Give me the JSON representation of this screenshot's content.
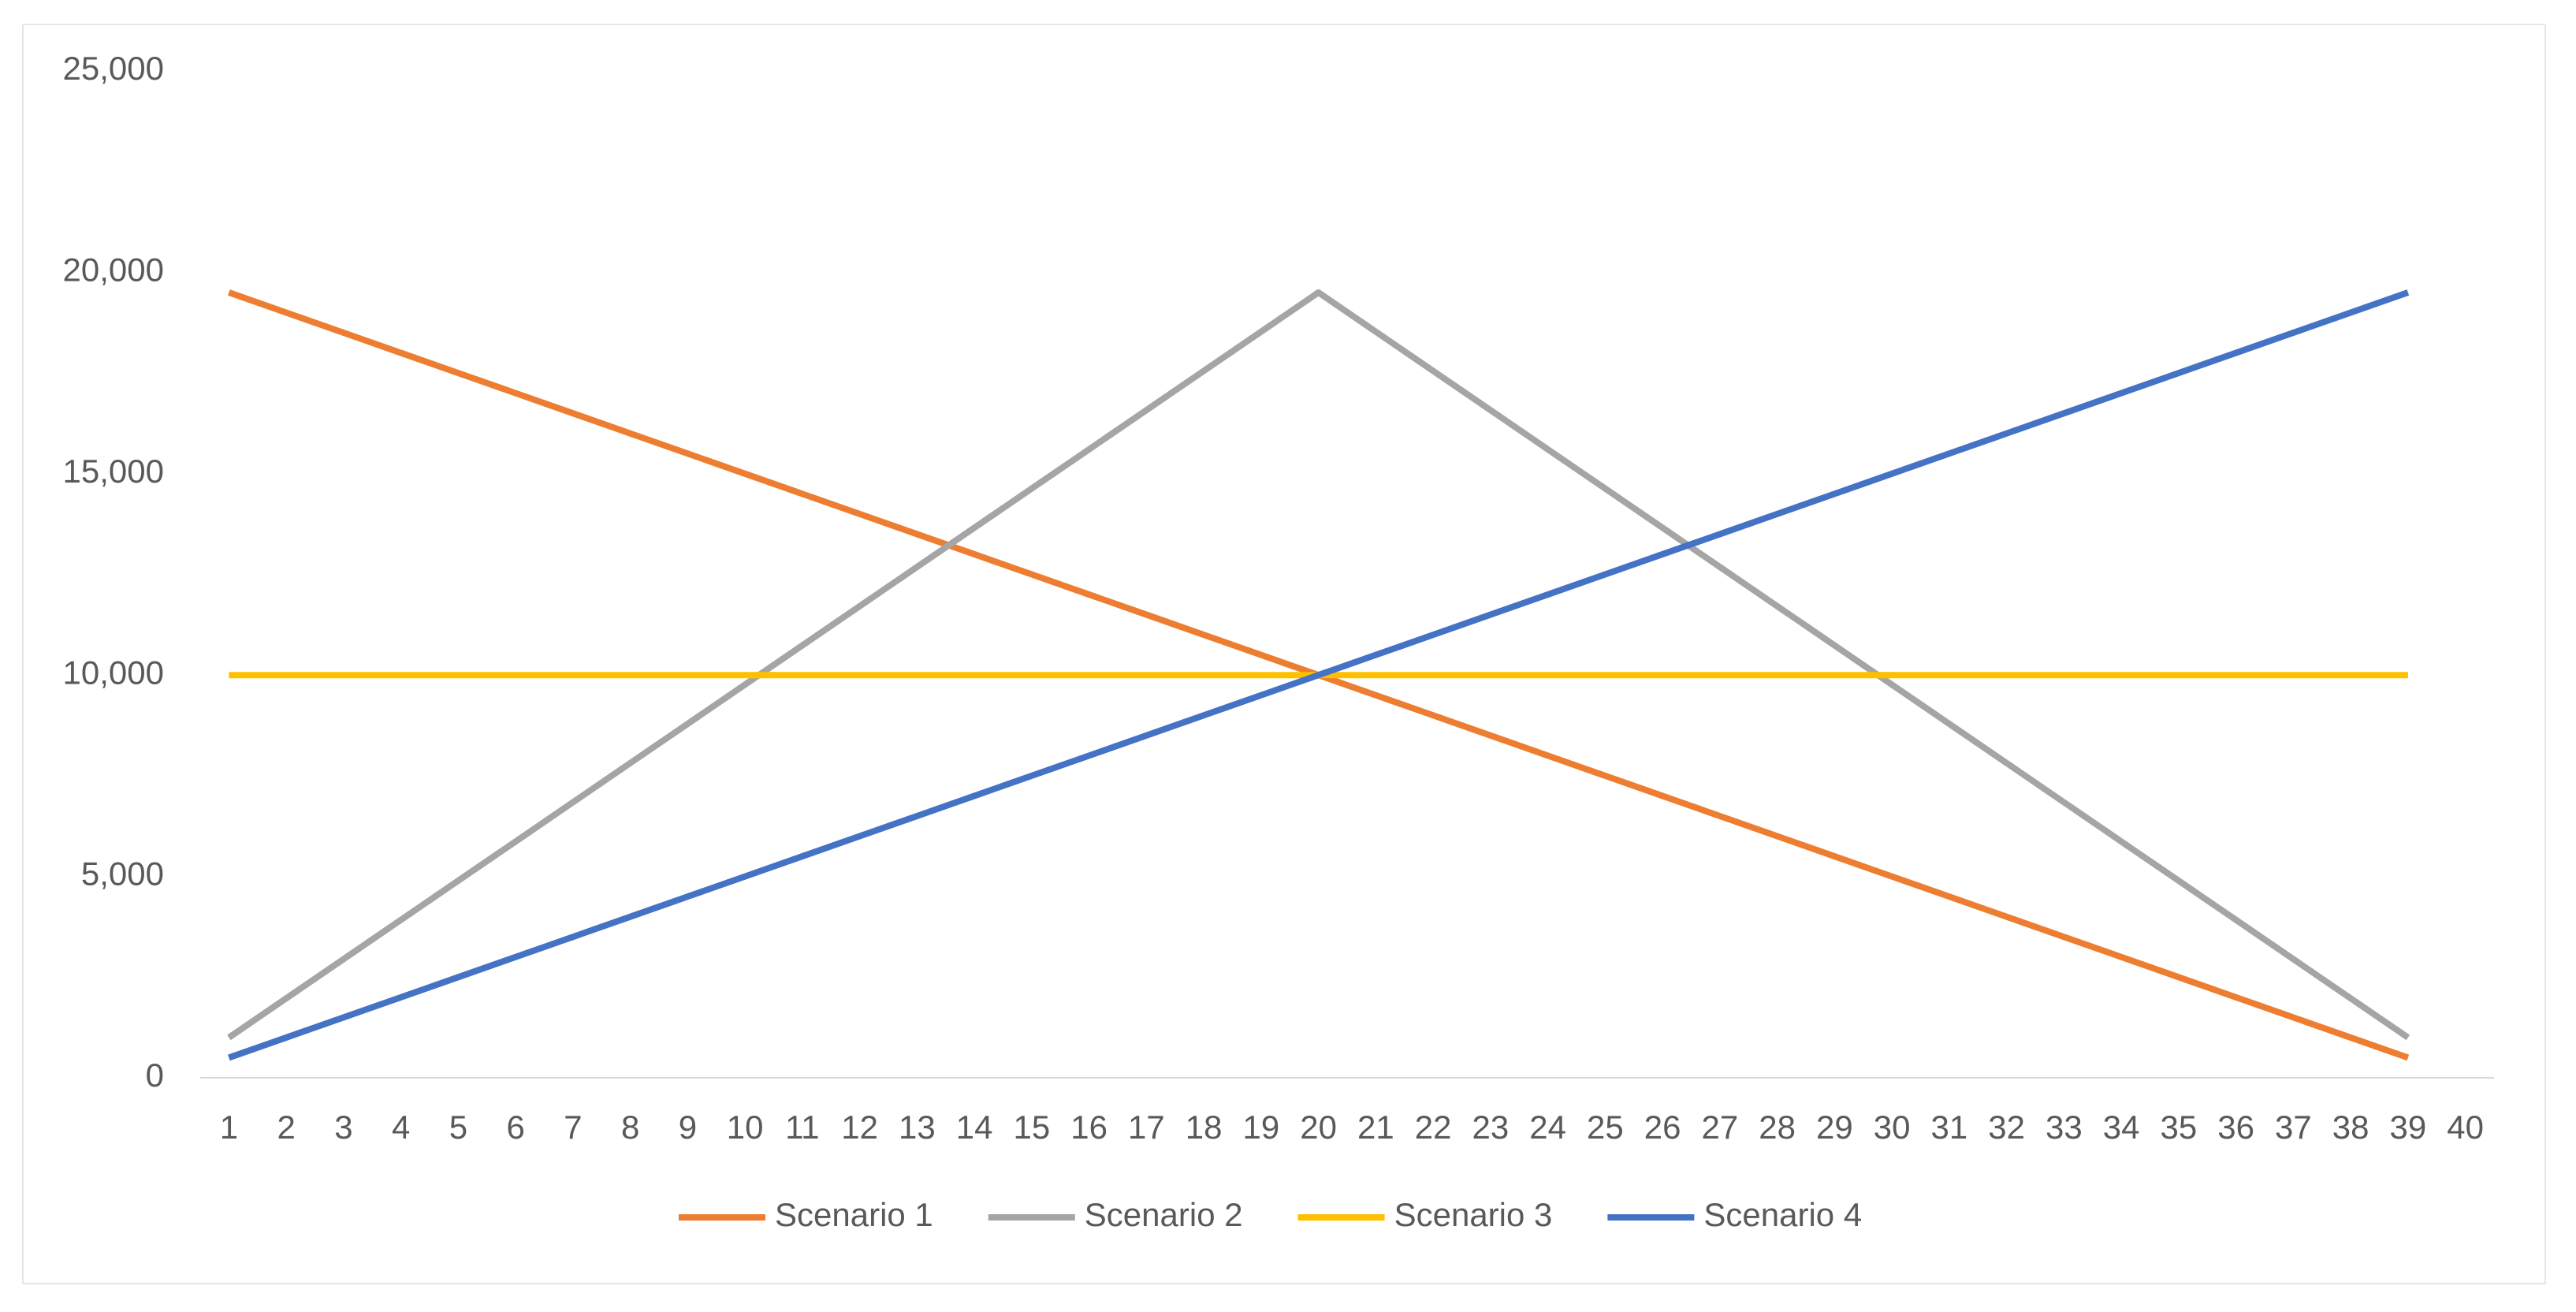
{
  "chart_data": {
    "type": "line",
    "categories": [
      1,
      2,
      3,
      4,
      5,
      6,
      7,
      8,
      9,
      10,
      11,
      12,
      13,
      14,
      15,
      16,
      17,
      18,
      19,
      20,
      21,
      22,
      23,
      24,
      25,
      26,
      27,
      28,
      29,
      30,
      31,
      32,
      33,
      34,
      35,
      36,
      37,
      38,
      39,
      40
    ],
    "series": [
      {
        "name": "Scenario 1",
        "color": "#ED7D31",
        "values": [
          19500,
          19000,
          18500,
          18000,
          17500,
          17000,
          16500,
          16000,
          15500,
          15000,
          14500,
          14000,
          13500,
          13000,
          12500,
          12000,
          11500,
          11000,
          10500,
          10000,
          9500,
          9000,
          8500,
          8000,
          7500,
          7000,
          6500,
          6000,
          5500,
          5000,
          4500,
          4000,
          3500,
          3000,
          2500,
          2000,
          1500,
          1000,
          500,
          null
        ]
      },
      {
        "name": "Scenario 2",
        "color": "#A5A5A5",
        "values": [
          1000,
          1974,
          2947,
          3921,
          4895,
          5868,
          6842,
          7816,
          8789,
          9763,
          10737,
          11711,
          12684,
          13658,
          14632,
          15605,
          16579,
          17553,
          18526,
          19500,
          18526,
          17553,
          16579,
          15605,
          14632,
          13658,
          12684,
          11711,
          10737,
          9763,
          8789,
          7816,
          6842,
          5868,
          4895,
          3921,
          2947,
          1974,
          1000,
          null
        ]
      },
      {
        "name": "Scenario 3",
        "color": "#FFC000",
        "values": [
          10000,
          10000,
          10000,
          10000,
          10000,
          10000,
          10000,
          10000,
          10000,
          10000,
          10000,
          10000,
          10000,
          10000,
          10000,
          10000,
          10000,
          10000,
          10000,
          10000,
          10000,
          10000,
          10000,
          10000,
          10000,
          10000,
          10000,
          10000,
          10000,
          10000,
          10000,
          10000,
          10000,
          10000,
          10000,
          10000,
          10000,
          10000,
          10000,
          null
        ]
      },
      {
        "name": "Scenario 4",
        "color": "#4472C4",
        "values": [
          500,
          1000,
          1500,
          2000,
          2500,
          3000,
          3500,
          4000,
          4500,
          5000,
          5500,
          6000,
          6500,
          7000,
          7500,
          8000,
          8500,
          9000,
          9500,
          10000,
          10500,
          11000,
          11500,
          12000,
          12500,
          13000,
          13500,
          14000,
          14500,
          15000,
          15500,
          16000,
          16500,
          17000,
          17500,
          18000,
          18500,
          19000,
          19500,
          null
        ]
      }
    ],
    "ylim": [
      0,
      25000
    ],
    "yticks": [
      0,
      {
        "value": 5000,
        "label": "5,000"
      },
      {
        "value": 10000,
        "label": "10,000"
      },
      {
        "value": 15000,
        "label": "15,000"
      },
      {
        "value": 20000,
        "label": "20,000"
      },
      {
        "value": 25000,
        "label": "25,000"
      }
    ],
    "grid": false,
    "legend": "bottom"
  }
}
